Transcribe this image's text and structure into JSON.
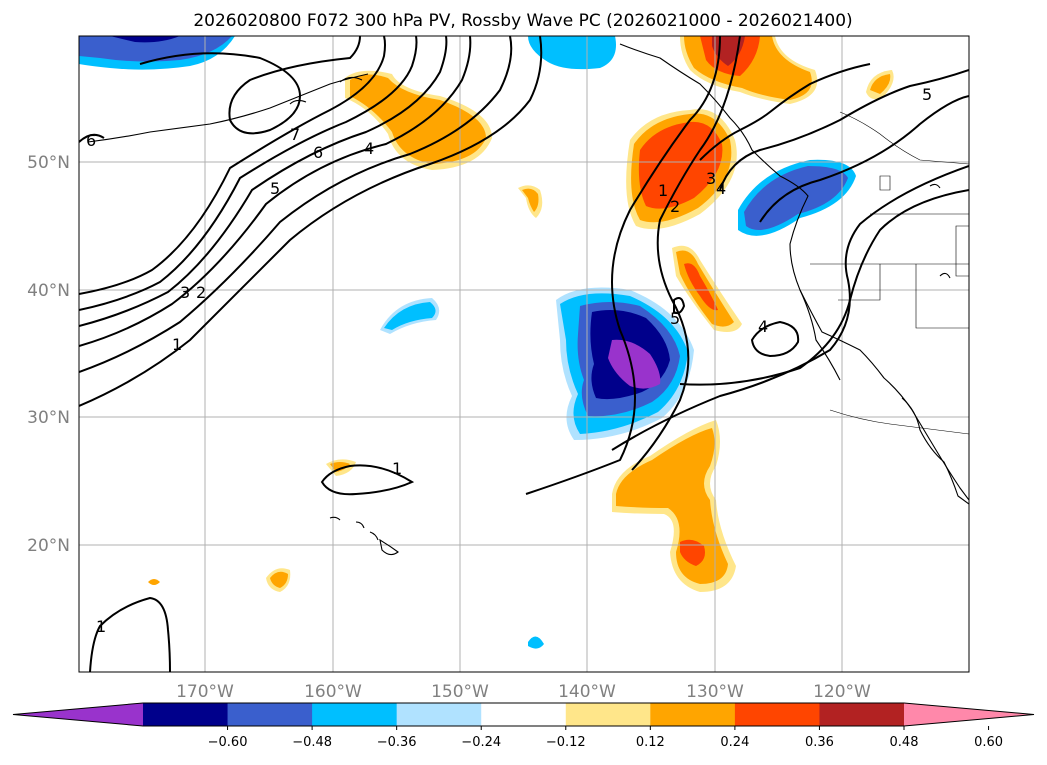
{
  "title": "2026020800 F072 300 hPa PV, Rossby Wave PC (2026021000 - 2026021400)",
  "map": {
    "lat_labels": [
      "50°N",
      "40°N",
      "30°N",
      "20°N"
    ],
    "lon_labels": [
      "170°W",
      "160°W",
      "150°W",
      "140°W",
      "130°W",
      "120°W"
    ],
    "contour_labels": [
      "6",
      "7",
      "6",
      "4",
      "5",
      "3",
      "2",
      "1",
      "1",
      "2",
      "3",
      "4",
      "5",
      "4",
      "1",
      "1",
      "5"
    ]
  },
  "colorbar": {
    "ticks": [
      "−0.60",
      "−0.48",
      "−0.36",
      "−0.24",
      "−0.12",
      "0.12",
      "0.24",
      "0.36",
      "0.48",
      "0.60"
    ],
    "colors": [
      "#9933cc",
      "#00008b",
      "#3a5fcd",
      "#00bfff",
      "#b0e2ff",
      "#ffffff",
      "#ffe68a",
      "#ffa500",
      "#ff4500",
      "#b22222",
      "#ff88aa"
    ]
  },
  "palette": {
    "strong_neg": "#9933cc",
    "neg5": "#00008b",
    "neg4": "#3a5fcd",
    "neg3": "#00bfff",
    "neg2": "#b0e2ff",
    "pos2": "#ffe68a",
    "pos3": "#ffa500",
    "pos4": "#ff4500",
    "pos5": "#b22222",
    "pos6": "#ff88aa",
    "grid": "#b0b0b0"
  }
}
